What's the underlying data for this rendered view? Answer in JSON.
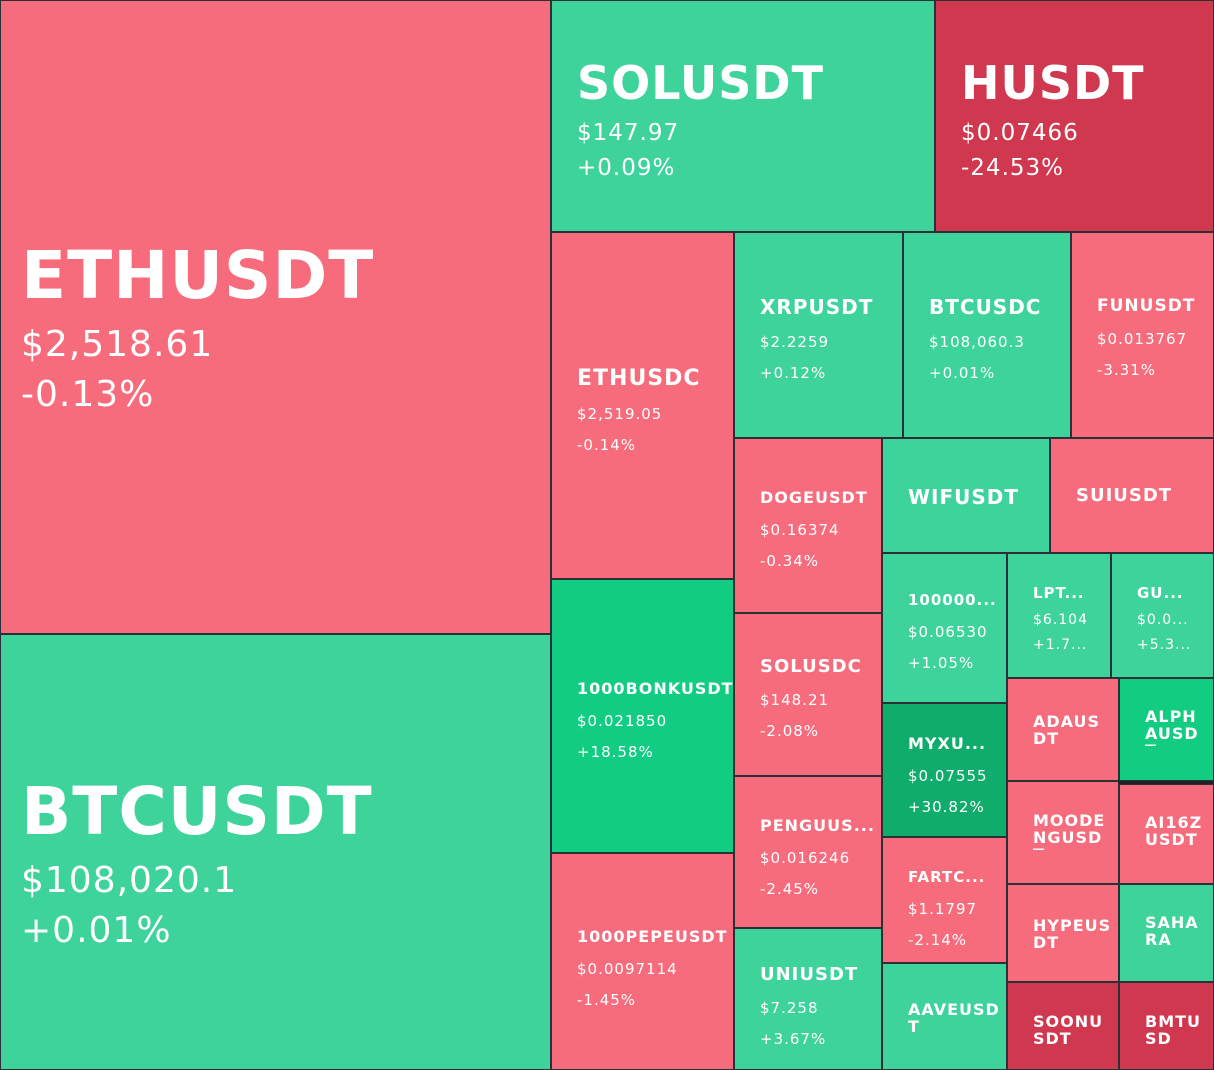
{
  "colors": {
    "up": "#3fd39c",
    "up_strong": "#12cc82",
    "up_stronger": "#0fac6c",
    "down": "#f66c7c",
    "down_strong": "#cf384f"
  },
  "chart_data": {
    "type": "treemap",
    "tiles": [
      {
        "symbol": "ETHUSDT",
        "price": "$2,518.61",
        "change": "-0.13%"
      },
      {
        "symbol": "BTCUSDT",
        "price": "$108,020.1",
        "change": "+0.01%"
      },
      {
        "symbol": "SOLUSDT",
        "price": "$147.97",
        "change": "+0.09%"
      },
      {
        "symbol": "HUSDT",
        "price": "$0.07466",
        "change": "-24.53%"
      },
      {
        "symbol": "ETHUSDC",
        "price": "$2,519.05",
        "change": "-0.14%"
      },
      {
        "symbol": "XRPUSDT",
        "price": "$2.2259",
        "change": "+0.12%"
      },
      {
        "symbol": "BTCUSDC",
        "price": "$108,060.3",
        "change": "+0.01%"
      },
      {
        "symbol": "FUNUSDT",
        "price": "$0.013767",
        "change": "-3.31%"
      },
      {
        "symbol": "DOGEUSDT",
        "price": "$0.16374",
        "change": "-0.34%"
      },
      {
        "symbol": "WIFUSDT",
        "price": "",
        "change": ""
      },
      {
        "symbol": "SUIUSDT",
        "price": "",
        "change": ""
      },
      {
        "symbol": "100000...",
        "price": "$0.06530",
        "change": "+1.05%"
      },
      {
        "symbol": "LPT...",
        "price": "$6.104",
        "change": "+1.7..."
      },
      {
        "symbol": "GU...",
        "price": "$0.0...",
        "change": "+5.3..."
      },
      {
        "symbol": "1000BONKUSDT",
        "price": "$0.021850",
        "change": "+18.58%"
      },
      {
        "symbol": "SOLUSDC",
        "price": "$148.21",
        "change": "-2.08%"
      },
      {
        "symbol": "MYXU...",
        "price": "$0.07555",
        "change": "+30.82%"
      },
      {
        "symbol": "ADAUSDT",
        "price": "",
        "change": ""
      },
      {
        "symbol": "ALPHAUSDT",
        "price": "",
        "change": ""
      },
      {
        "symbol": "PENGUUS...",
        "price": "$0.016246",
        "change": "-2.45%"
      },
      {
        "symbol": "MOODENGUSDT",
        "price": "",
        "change": ""
      },
      {
        "symbol": "AI16ZUSDT",
        "price": "",
        "change": ""
      },
      {
        "symbol": "FARTC...",
        "price": "$1.1797",
        "change": "-2.14%"
      },
      {
        "symbol": "1000PEPEUSDT",
        "price": "$0.0097114",
        "change": "-1.45%"
      },
      {
        "symbol": "HYPEUSDT",
        "price": "",
        "change": ""
      },
      {
        "symbol": "SAHARA",
        "price": "",
        "change": ""
      },
      {
        "symbol": "UNIUSDT",
        "price": "$7.258",
        "change": "+3.67%"
      },
      {
        "symbol": "AAVEUSDT",
        "price": "",
        "change": ""
      },
      {
        "symbol": "SOONUSDT",
        "price": "",
        "change": ""
      },
      {
        "symbol": "BMTUSD",
        "price": "",
        "change": ""
      }
    ]
  }
}
